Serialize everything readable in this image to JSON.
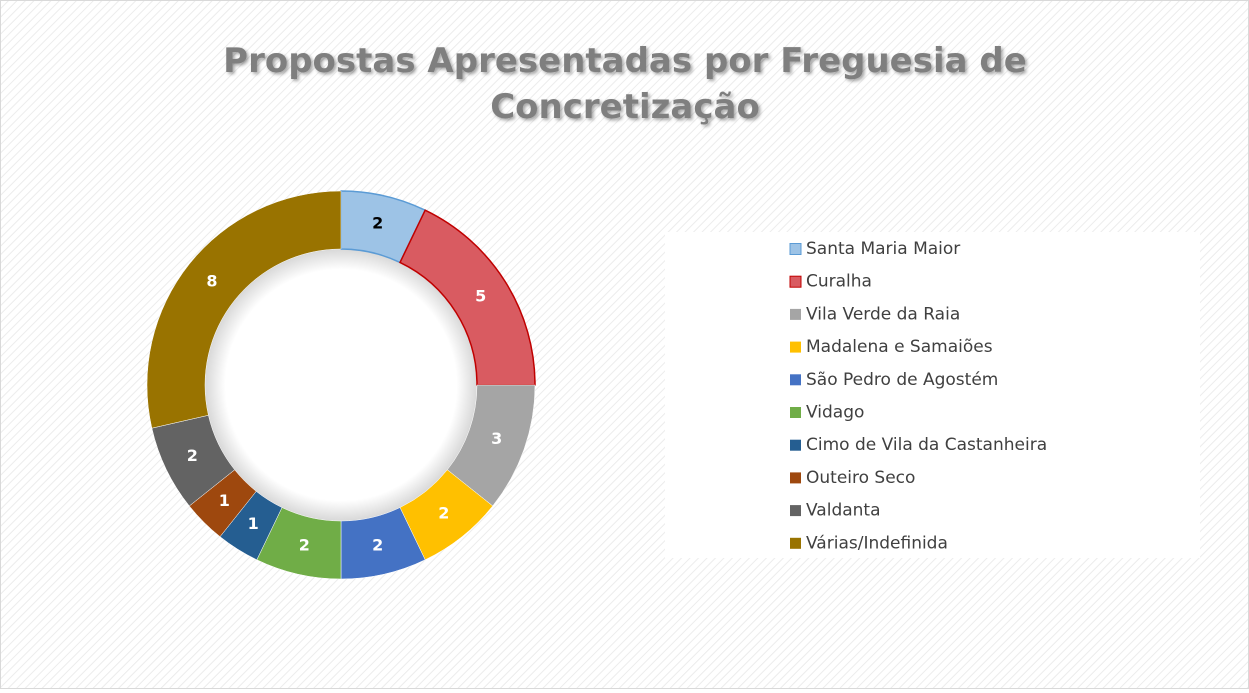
{
  "chart_data": {
    "type": "pie",
    "title": "Propostas Apresentadas por Freguesia de Concretização",
    "categories": [
      "Santa Maria Maior",
      "Curalha",
      "Vila Verde da Raia",
      "Madalena e Samaiões",
      "São Pedro de Agostém",
      "Vidago",
      "Cimo de Vila da Castanheira",
      "Outeiro Seco",
      "Valdanta",
      "Várias/Indefinida"
    ],
    "values": [
      2,
      5,
      3,
      2,
      2,
      2,
      1,
      1,
      2,
      8
    ],
    "colors": [
      "#9dc3e6",
      "#d95b61",
      "#a5a5a5",
      "#ffc000",
      "#4472c4",
      "#70ad47",
      "#255e91",
      "#9e480e",
      "#636363",
      "#997300"
    ],
    "legend": "right"
  }
}
